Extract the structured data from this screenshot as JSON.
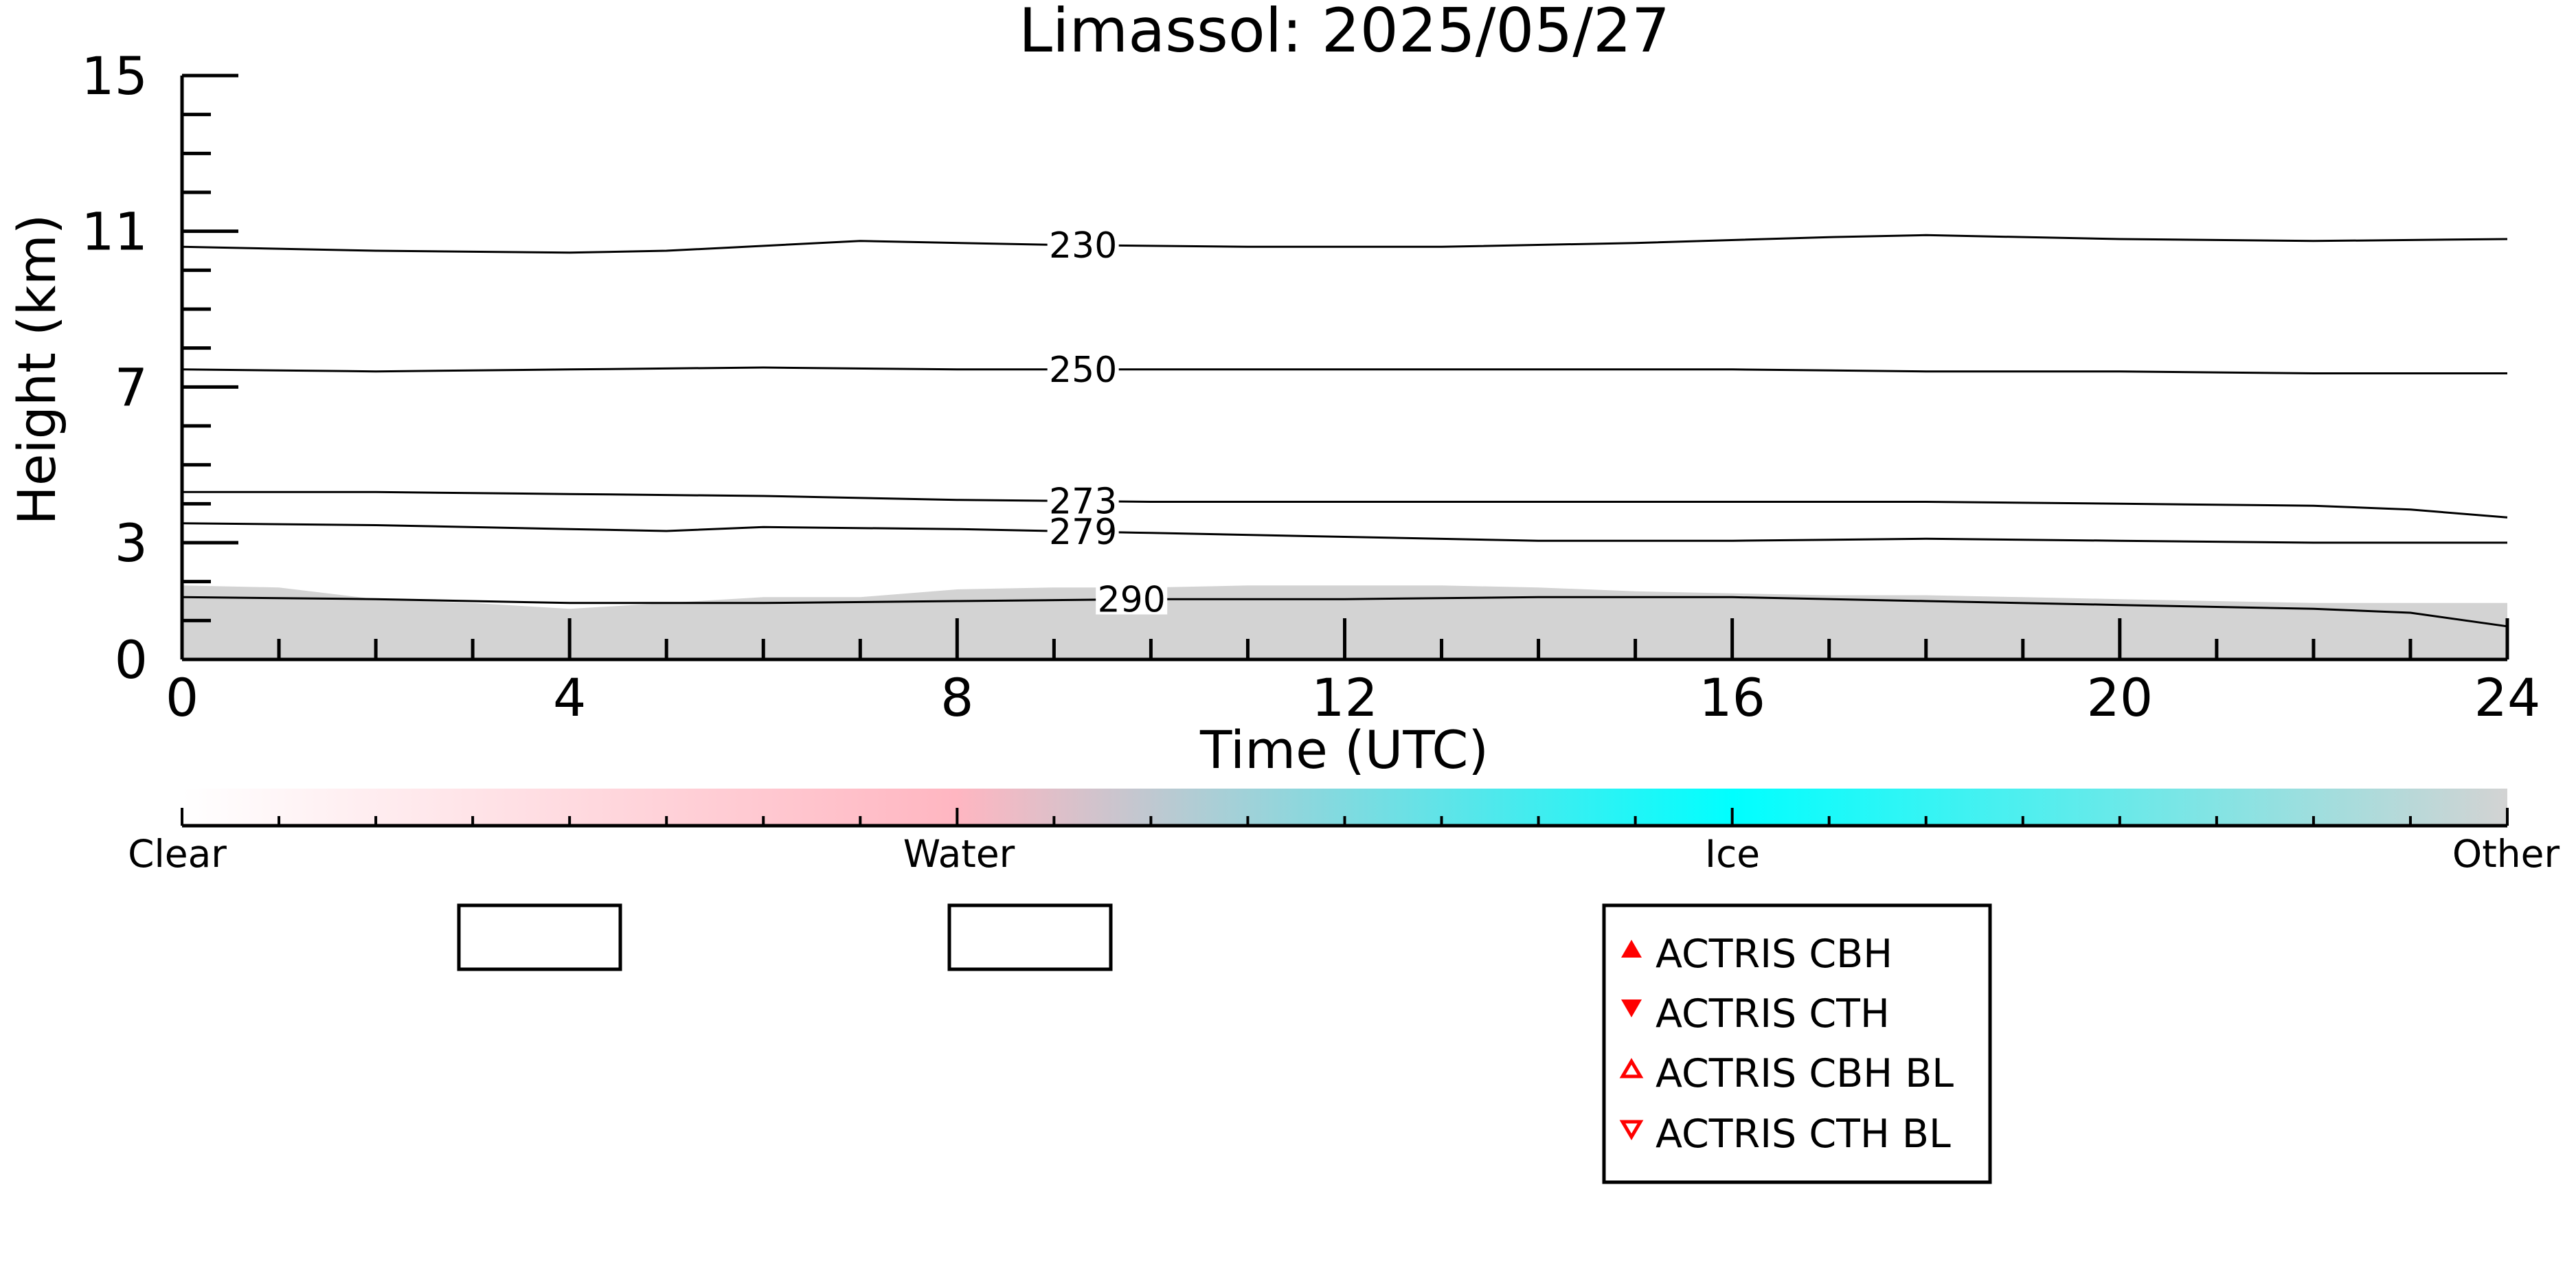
{
  "chart_data": {
    "type": "line",
    "title": "Limassol: 2025/05/27",
    "xlabel": "Time (UTC)",
    "ylabel": "Height (km)",
    "xlim": [
      0,
      24
    ],
    "ylim": [
      0,
      15
    ],
    "xticks": [
      0,
      4,
      8,
      12,
      16,
      20,
      24
    ],
    "yticks": [
      0,
      3,
      7,
      11,
      15
    ],
    "grid": false,
    "series": [
      {
        "name": "230",
        "x": [
          0,
          2,
          4,
          5,
          7,
          9,
          11,
          13,
          15,
          17,
          18,
          20,
          22,
          24
        ],
        "values": [
          10.6,
          10.5,
          10.45,
          10.5,
          10.75,
          10.65,
          10.6,
          10.6,
          10.7,
          10.85,
          10.9,
          10.8,
          10.75,
          10.8
        ]
      },
      {
        "name": "250",
        "x": [
          0,
          2,
          4,
          6,
          8,
          10,
          12,
          14,
          16,
          18,
          20,
          22,
          24
        ],
        "values": [
          7.45,
          7.4,
          7.45,
          7.5,
          7.45,
          7.45,
          7.45,
          7.45,
          7.45,
          7.4,
          7.4,
          7.35,
          7.35
        ]
      },
      {
        "name": "273",
        "x": [
          0,
          2,
          4,
          6,
          8,
          10,
          12,
          14,
          16,
          18,
          20,
          22,
          23,
          24
        ],
        "values": [
          4.3,
          4.3,
          4.25,
          4.2,
          4.1,
          4.05,
          4.05,
          4.05,
          4.05,
          4.05,
          4.0,
          3.95,
          3.85,
          3.65
        ]
      },
      {
        "name": "279",
        "x": [
          0,
          2,
          4,
          5,
          6,
          8,
          10,
          12,
          14,
          16,
          18,
          20,
          22,
          24
        ],
        "values": [
          3.5,
          3.45,
          3.35,
          3.3,
          3.4,
          3.35,
          3.25,
          3.15,
          3.05,
          3.05,
          3.1,
          3.05,
          3.0,
          3.0
        ]
      },
      {
        "name": "290",
        "x": [
          0,
          2,
          4,
          6,
          8,
          10,
          12,
          14,
          16,
          18,
          20,
          22,
          23,
          24
        ],
        "values": [
          1.6,
          1.55,
          1.45,
          1.45,
          1.5,
          1.55,
          1.55,
          1.6,
          1.6,
          1.5,
          1.4,
          1.3,
          1.2,
          0.85
        ]
      }
    ],
    "classification_layer": {
      "label": "Other",
      "color": "#d3d3d3",
      "x": [
        0,
        1,
        2,
        3,
        4,
        5,
        6,
        7,
        8,
        9,
        10,
        11,
        12,
        13,
        14,
        15,
        16,
        17,
        18,
        19,
        20,
        21,
        22,
        23,
        24
      ],
      "top_km": [
        1.9,
        1.85,
        1.55,
        1.45,
        1.3,
        1.45,
        1.6,
        1.6,
        1.8,
        1.85,
        1.85,
        1.9,
        1.9,
        1.9,
        1.85,
        1.75,
        1.7,
        1.65,
        1.65,
        1.6,
        1.55,
        1.5,
        1.45,
        1.45,
        1.45
      ]
    },
    "colorbar": {
      "labels": [
        "Clear",
        "Water",
        "Ice",
        "Other"
      ],
      "stops": [
        "#ffffff",
        "#ffb6c1",
        "#00ffff",
        "#d3d3d3"
      ]
    },
    "legend": {
      "placement": "bottom-center",
      "items": [
        {
          "label": "ACTRIS CBH",
          "marker": "triangle-up-filled",
          "color": "#ff0000"
        },
        {
          "label": "ACTRIS CTH",
          "marker": "triangle-down-filled",
          "color": "#ff0000"
        },
        {
          "label": "ACTRIS CBH BL",
          "marker": "triangle-up-open",
          "color": "#ff0000"
        },
        {
          "label": "ACTRIS CTH BL",
          "marker": "triangle-down-open",
          "color": "#ff0000"
        }
      ],
      "empty_boxes": 2
    }
  }
}
